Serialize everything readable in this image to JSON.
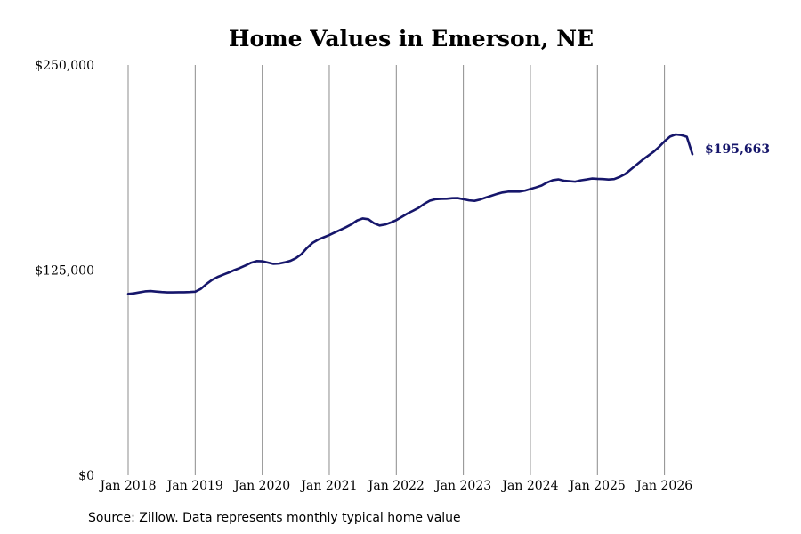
{
  "chart_data": {
    "type": "line",
    "title": "Home Values in Emerson, NE",
    "source": "Source: Zillow. Data represents monthly typical home value",
    "xlabel": "",
    "ylabel": "",
    "ylim": [
      0,
      250000
    ],
    "y_ticks": [
      {
        "value": 0,
        "label": "$0"
      },
      {
        "value": 125000,
        "label": "$125,000"
      },
      {
        "value": 250000,
        "label": "$250,000"
      }
    ],
    "x_ticks": [
      {
        "value": "2018-01",
        "label": "Jan 2018"
      },
      {
        "value": "2019-01",
        "label": "Jan 2019"
      },
      {
        "value": "2020-01",
        "label": "Jan 2020"
      },
      {
        "value": "2021-01",
        "label": "Jan 2021"
      },
      {
        "value": "2022-01",
        "label": "Jan 2022"
      },
      {
        "value": "2023-01",
        "label": "Jan 2023"
      },
      {
        "value": "2024-01",
        "label": "Jan 2024"
      },
      {
        "value": "2025-01",
        "label": "Jan 2025"
      },
      {
        "value": "2026-01",
        "label": "Jan 2026"
      }
    ],
    "x_range": [
      "2018-01",
      "2026-06"
    ],
    "vertical_grid": true,
    "horizontal_grid": false,
    "line_color": "#16166b",
    "end_label": "$195,663",
    "series": [
      {
        "x": [
          "2018-01",
          "2018-02",
          "2018-03",
          "2018-04",
          "2018-05",
          "2018-06",
          "2018-07",
          "2018-08",
          "2018-09",
          "2018-10",
          "2018-11",
          "2018-12",
          "2019-01",
          "2019-02",
          "2019-03",
          "2019-04",
          "2019-05",
          "2019-06",
          "2019-07",
          "2019-08",
          "2019-09",
          "2019-10",
          "2019-11",
          "2019-12",
          "2020-01",
          "2020-02",
          "2020-03",
          "2020-04",
          "2020-05",
          "2020-06",
          "2020-07",
          "2020-08",
          "2020-09",
          "2020-10",
          "2020-11",
          "2020-12",
          "2021-01",
          "2021-02",
          "2021-03",
          "2021-04",
          "2021-05",
          "2021-06",
          "2021-07",
          "2021-08",
          "2021-09",
          "2021-10",
          "2021-11",
          "2021-12",
          "2022-01",
          "2022-02",
          "2022-03",
          "2022-04",
          "2022-05",
          "2022-06",
          "2022-07",
          "2022-08",
          "2022-09",
          "2022-10",
          "2022-11",
          "2022-12",
          "2023-01",
          "2023-02",
          "2023-03",
          "2023-04",
          "2023-05",
          "2023-06",
          "2023-07",
          "2023-08",
          "2023-09",
          "2023-10",
          "2023-11",
          "2023-12",
          "2024-01",
          "2024-02",
          "2024-03",
          "2024-04",
          "2024-05",
          "2024-06",
          "2024-07",
          "2024-08",
          "2024-09",
          "2024-10",
          "2024-11",
          "2024-12",
          "2025-01",
          "2025-02",
          "2025-03",
          "2025-04",
          "2025-05",
          "2025-06",
          "2025-07",
          "2025-08",
          "2025-09",
          "2025-10",
          "2025-11",
          "2025-12",
          "2026-01",
          "2026-02",
          "2026-03",
          "2026-04",
          "2026-05",
          "2026-06"
        ],
        "values": [
          110500,
          110800,
          111400,
          112000,
          112200,
          111900,
          111600,
          111400,
          111400,
          111500,
          111500,
          111600,
          111800,
          113500,
          116500,
          119000,
          120800,
          122200,
          123500,
          125000,
          126300,
          127800,
          129500,
          130500,
          130400,
          129600,
          128800,
          129000,
          129700,
          130600,
          132200,
          134700,
          138500,
          141600,
          143600,
          145000,
          146400,
          148000,
          149600,
          151200,
          153000,
          155300,
          156500,
          156000,
          153600,
          152200,
          152800,
          154000,
          155500,
          157500,
          159500,
          161200,
          163000,
          165400,
          167300,
          168200,
          168400,
          168500,
          168800,
          168900,
          168200,
          167500,
          167200,
          168000,
          169200,
          170300,
          171400,
          172300,
          172800,
          172800,
          172800,
          173400,
          174400,
          175400,
          176500,
          178400,
          179800,
          180300,
          179500,
          179200,
          178900,
          179700,
          180200,
          180800,
          180600,
          180500,
          180200,
          180500,
          181800,
          183600,
          186400,
          189200,
          192000,
          194500,
          197000,
          200000,
          203500,
          206400,
          207700,
          207300,
          206300,
          195663
        ]
      }
    ]
  }
}
